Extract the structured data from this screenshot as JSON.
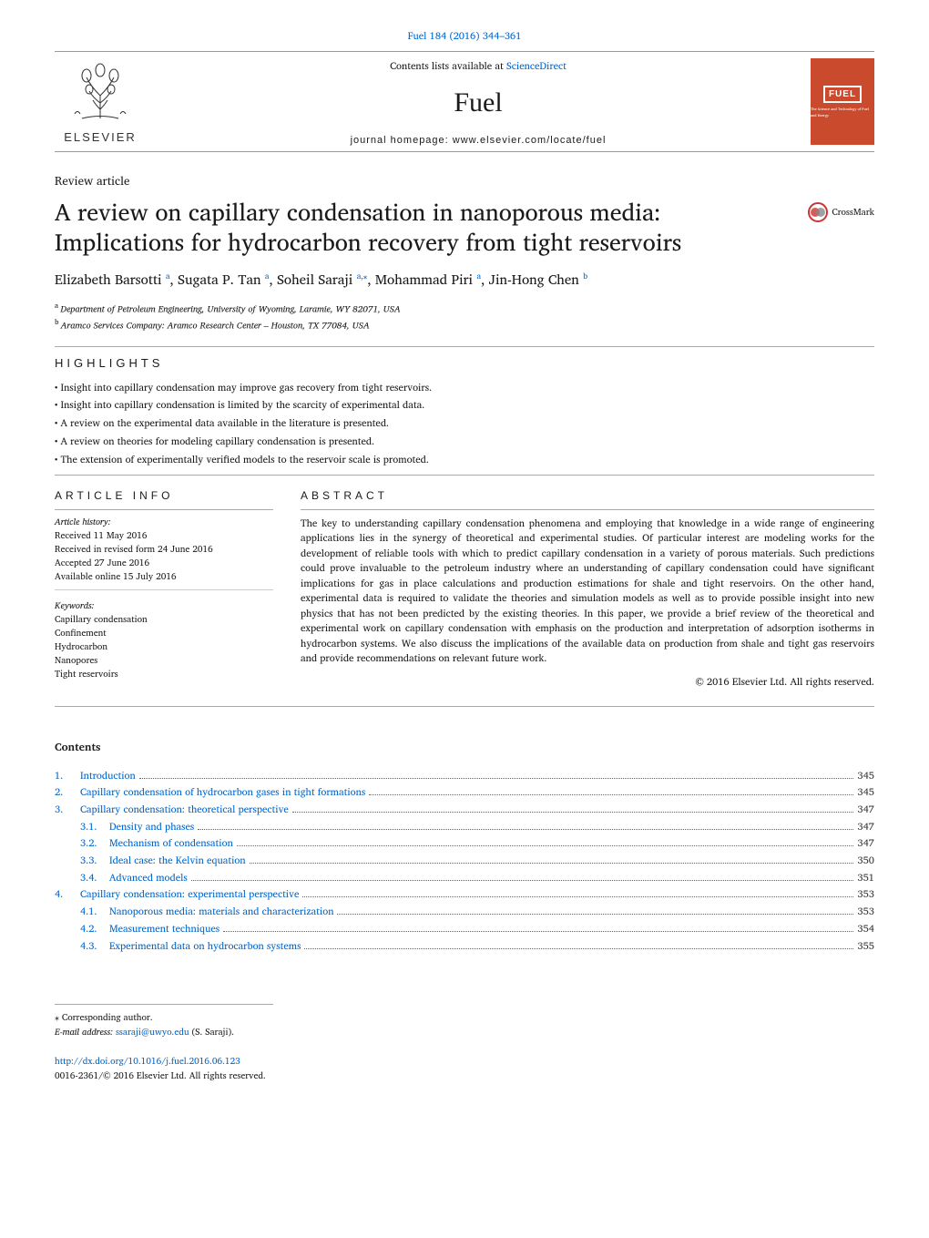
{
  "top_link": {
    "text": "Fuel 184 (2016) 344–361",
    "href_visible": false
  },
  "header": {
    "elsevier_brand": "ELSEVIER",
    "contents_prefix": "Contents lists available at ",
    "contents_link": "ScienceDirect",
    "journal": "Fuel",
    "homepage_prefix": "journal homepage: ",
    "homepage_url": "www.elsevier.com/locate/fuel",
    "cover_title": "FUEL",
    "cover_subtitle": "The Science and Technology of Fuel and Energy"
  },
  "article_type": "Review article",
  "title": "A review on capillary condensation in nanoporous media: Implications for hydrocarbon recovery from tight reservoirs",
  "crossmark": "CrossMark",
  "crossmark_glyph": "�⃝",
  "authors_html": "Elizabeth Barsotti <sup>a</sup>, Sugata P. Tan <sup>a</sup>, Soheil Saraji <sup>a,*</sup>, Mohammad Piri <sup>a</sup>, Jin-Hong Chen <sup>b</sup>",
  "authors_parts": [
    {
      "name": "Elizabeth Barsotti",
      "sup": "a"
    },
    {
      "name": "Sugata P. Tan",
      "sup": "a"
    },
    {
      "name": "Soheil Saraji",
      "sup": "a,⁎"
    },
    {
      "name": "Mohammad Piri",
      "sup": "a"
    },
    {
      "name": "Jin-Hong Chen",
      "sup": "b"
    }
  ],
  "affiliations": [
    {
      "sup": "a",
      "text": "Department of Petroleum Engineering, University of Wyoming, Laramie, WY 82071, USA"
    },
    {
      "sup": "b",
      "text": "Aramco Services Company: Aramco Research Center – Houston, TX 77084, USA"
    }
  ],
  "highlights_label": "HIGHLIGHTS",
  "highlights": [
    "Insight into capillary condensation may improve gas recovery from tight reservoirs.",
    "Insight into capillary condensation is limited by the scarcity of experimental data.",
    "A review on the experimental data available in the literature is presented.",
    "A review on theories for modeling capillary condensation is presented.",
    "The extension of experimentally verified models to the reservoir scale is promoted."
  ],
  "article_info": {
    "label": "ARTICLE INFO",
    "history_title": "Article history:",
    "history": [
      "Received 11 May 2016",
      "Received in revised form 24 June 2016",
      "Accepted 27 June 2016",
      "Available online 15 July 2016"
    ],
    "keywords_title": "Keywords:",
    "keywords": [
      "Capillary condensation",
      "Confinement",
      "Hydrocarbon",
      "Nanopores",
      "Tight reservoirs"
    ]
  },
  "abstract": {
    "label": "ABSTRACT",
    "text": "The key to understanding capillary condensation phenomena and employing that knowledge in a wide range of engineering applications lies in the synergy of theoretical and experimental studies. Of particular interest are modeling works for the development of reliable tools with which to predict capillary condensation in a variety of porous materials. Such predictions could prove invaluable to the petroleum industry where an understanding of capillary condensation could have significant implications for gas in place calculations and production estimations for shale and tight reservoirs. On the other hand, experimental data is required to validate the theories and simulation models as well as to provide possible insight into new physics that has not been predicted by the existing theories. In this paper, we provide a brief review of the theoretical and experimental work on capillary condensation with emphasis on the production and interpretation of adsorption isotherms in hydrocarbon systems. We also discuss the implications of the available data on production from shale and tight gas reservoirs and provide recommendations on relevant future work.",
    "copyright": "© 2016 Elsevier Ltd. All rights reserved."
  },
  "contents_heading": "Contents",
  "toc": [
    {
      "num": "1.",
      "title": "Introduction",
      "page": "345",
      "level": 0
    },
    {
      "num": "2.",
      "title": "Capillary condensation of hydrocarbon gases in tight formations",
      "page": "345",
      "level": 0
    },
    {
      "num": "3.",
      "title": "Capillary condensation: theoretical perspective",
      "page": "347",
      "level": 0
    },
    {
      "num": "3.1.",
      "title": "Density and phases",
      "page": "347",
      "level": 1
    },
    {
      "num": "3.2.",
      "title": "Mechanism of condensation",
      "page": "347",
      "level": 1
    },
    {
      "num": "3.3.",
      "title": "Ideal case: the Kelvin equation",
      "page": "350",
      "level": 1
    },
    {
      "num": "3.4.",
      "title": "Advanced models",
      "page": "351",
      "level": 1
    },
    {
      "num": "4.",
      "title": "Capillary condensation: experimental perspective",
      "page": "353",
      "level": 0
    },
    {
      "num": "4.1.",
      "title": "Nanoporous media: materials and characterization",
      "page": "353",
      "level": 1
    },
    {
      "num": "4.2.",
      "title": "Measurement techniques",
      "page": "354",
      "level": 1
    },
    {
      "num": "4.3.",
      "title": "Experimental data on hydrocarbon systems",
      "page": "355",
      "level": 1
    }
  ],
  "footer": {
    "corresponding": "⁎ Corresponding author.",
    "email_label": "E-mail address:",
    "email": "ssaraji@uwyo.edu",
    "email_suffix": "(S. Saraji)."
  },
  "bottom": {
    "doi": "http://dx.doi.org/10.1016/j.fuel.2016.06.123",
    "issn_line": "0016-2361/© 2016 Elsevier Ltd. All rights reserved."
  },
  "colors": {
    "link": "#0066cc",
    "cover_bg": "#c94a2d",
    "rule": "#aaaaaa",
    "text": "#1a1a1a"
  },
  "typography": {
    "body_family": "Times New Roman, serif",
    "title_size_pt": 20,
    "authors_size_pt": 12,
    "body_size_pt": 9
  }
}
